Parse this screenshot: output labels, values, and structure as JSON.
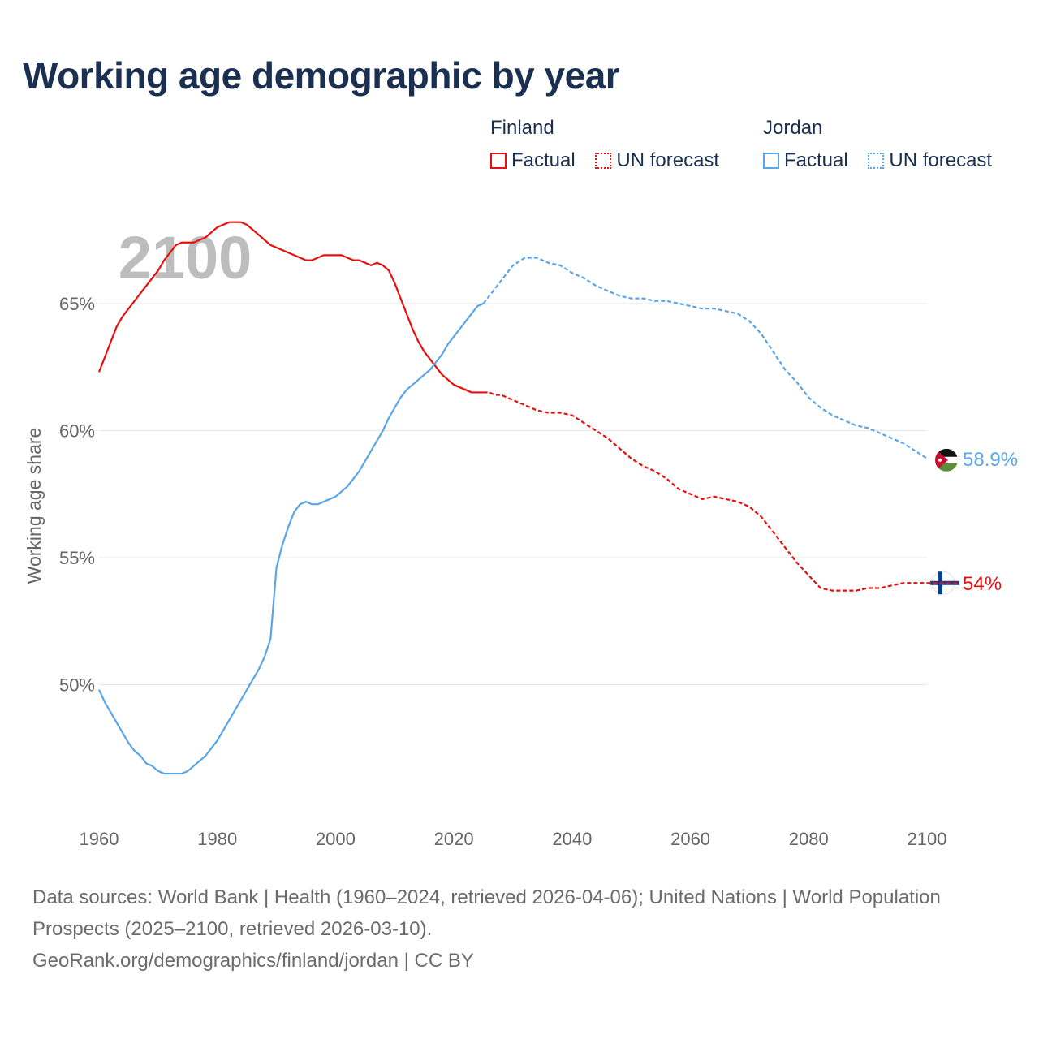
{
  "title": "Working age demographic by year",
  "legend": {
    "groups": [
      {
        "name": "Finland",
        "factual_label": "Factual",
        "forecast_label": "UN forecast",
        "color": "#e8100f"
      },
      {
        "name": "Jordan",
        "factual_label": "Factual",
        "forecast_label": "UN forecast",
        "color": "#5aa5e6"
      }
    ]
  },
  "footer": {
    "line1": "Data sources: World Bank | Health (1960–2024, retrieved 2026-04-06); United Nations | World Population Prospects (2025–2100, retrieved 2026-03-10).",
    "line2": "GeoRank.org/demographics/finland/jordan | CC BY"
  },
  "chart_data": {
    "type": "line",
    "year_watermark": "2100",
    "ylabel": "Working age share",
    "xlabel": "",
    "xlim": [
      1960,
      2100
    ],
    "ylim": [
      45,
      69.5
    ],
    "x_ticks": [
      1960,
      1980,
      2000,
      2020,
      2040,
      2060,
      2080,
      2100
    ],
    "y_ticks": [
      50,
      55,
      60,
      65
    ],
    "y_tick_labels": [
      "50%",
      "55%",
      "60%",
      "65%"
    ],
    "grid": true,
    "forecast_start": 2025,
    "series": [
      {
        "name": "Finland",
        "color": "#e8100f",
        "end_label": "54%",
        "flag_icon": "finland-flag-icon",
        "points": [
          [
            1960,
            62.3
          ],
          [
            1961,
            62.9
          ],
          [
            1962,
            63.5
          ],
          [
            1963,
            64.1
          ],
          [
            1964,
            64.5
          ],
          [
            1965,
            64.8
          ],
          [
            1966,
            65.1
          ],
          [
            1967,
            65.4
          ],
          [
            1968,
            65.7
          ],
          [
            1969,
            66.0
          ],
          [
            1970,
            66.3
          ],
          [
            1971,
            66.7
          ],
          [
            1972,
            67.0
          ],
          [
            1973,
            67.3
          ],
          [
            1974,
            67.4
          ],
          [
            1975,
            67.4
          ],
          [
            1976,
            67.4
          ],
          [
            1977,
            67.5
          ],
          [
            1978,
            67.6
          ],
          [
            1979,
            67.8
          ],
          [
            1980,
            68.0
          ],
          [
            1981,
            68.1
          ],
          [
            1982,
            68.2
          ],
          [
            1983,
            68.2
          ],
          [
            1984,
            68.2
          ],
          [
            1985,
            68.1
          ],
          [
            1986,
            67.9
          ],
          [
            1987,
            67.7
          ],
          [
            1988,
            67.5
          ],
          [
            1989,
            67.3
          ],
          [
            1990,
            67.2
          ],
          [
            1991,
            67.1
          ],
          [
            1992,
            67.0
          ],
          [
            1993,
            66.9
          ],
          [
            1994,
            66.8
          ],
          [
            1995,
            66.7
          ],
          [
            1996,
            66.7
          ],
          [
            1997,
            66.8
          ],
          [
            1998,
            66.9
          ],
          [
            1999,
            66.9
          ],
          [
            2000,
            66.9
          ],
          [
            2001,
            66.9
          ],
          [
            2002,
            66.8
          ],
          [
            2003,
            66.7
          ],
          [
            2004,
            66.7
          ],
          [
            2005,
            66.6
          ],
          [
            2006,
            66.5
          ],
          [
            2007,
            66.6
          ],
          [
            2008,
            66.5
          ],
          [
            2009,
            66.3
          ],
          [
            2010,
            65.8
          ],
          [
            2011,
            65.2
          ],
          [
            2012,
            64.6
          ],
          [
            2013,
            64.0
          ],
          [
            2014,
            63.5
          ],
          [
            2015,
            63.1
          ],
          [
            2016,
            62.8
          ],
          [
            2017,
            62.5
          ],
          [
            2018,
            62.2
          ],
          [
            2019,
            62.0
          ],
          [
            2020,
            61.8
          ],
          [
            2021,
            61.7
          ],
          [
            2022,
            61.6
          ],
          [
            2023,
            61.5
          ],
          [
            2024,
            61.5
          ],
          [
            2025,
            61.5
          ],
          [
            2026,
            61.5
          ],
          [
            2027,
            61.4
          ],
          [
            2028,
            61.4
          ],
          [
            2029,
            61.3
          ],
          [
            2030,
            61.2
          ],
          [
            2032,
            61.0
          ],
          [
            2034,
            60.8
          ],
          [
            2036,
            60.7
          ],
          [
            2038,
            60.7
          ],
          [
            2040,
            60.6
          ],
          [
            2042,
            60.3
          ],
          [
            2044,
            60.0
          ],
          [
            2046,
            59.7
          ],
          [
            2048,
            59.3
          ],
          [
            2050,
            58.9
          ],
          [
            2052,
            58.6
          ],
          [
            2054,
            58.4
          ],
          [
            2056,
            58.1
          ],
          [
            2058,
            57.7
          ],
          [
            2060,
            57.5
          ],
          [
            2062,
            57.3
          ],
          [
            2064,
            57.4
          ],
          [
            2066,
            57.3
          ],
          [
            2068,
            57.2
          ],
          [
            2070,
            57.0
          ],
          [
            2072,
            56.6
          ],
          [
            2074,
            56.0
          ],
          [
            2076,
            55.4
          ],
          [
            2078,
            54.8
          ],
          [
            2080,
            54.3
          ],
          [
            2082,
            53.8
          ],
          [
            2084,
            53.7
          ],
          [
            2086,
            53.7
          ],
          [
            2088,
            53.7
          ],
          [
            2090,
            53.8
          ],
          [
            2092,
            53.8
          ],
          [
            2094,
            53.9
          ],
          [
            2096,
            54.0
          ],
          [
            2098,
            54.0
          ],
          [
            2100,
            54.0
          ]
        ]
      },
      {
        "name": "Jordan",
        "color": "#5aa5e6",
        "end_label": "58.9%",
        "flag_icon": "jordan-flag-icon",
        "points": [
          [
            1960,
            49.8
          ],
          [
            1961,
            49.3
          ],
          [
            1962,
            48.9
          ],
          [
            1963,
            48.5
          ],
          [
            1964,
            48.1
          ],
          [
            1965,
            47.7
          ],
          [
            1966,
            47.4
          ],
          [
            1967,
            47.2
          ],
          [
            1968,
            46.9
          ],
          [
            1969,
            46.8
          ],
          [
            1970,
            46.6
          ],
          [
            1971,
            46.5
          ],
          [
            1972,
            46.5
          ],
          [
            1973,
            46.5
          ],
          [
            1974,
            46.5
          ],
          [
            1975,
            46.6
          ],
          [
            1976,
            46.8
          ],
          [
            1977,
            47.0
          ],
          [
            1978,
            47.2
          ],
          [
            1979,
            47.5
          ],
          [
            1980,
            47.8
          ],
          [
            1981,
            48.2
          ],
          [
            1982,
            48.6
          ],
          [
            1983,
            49.0
          ],
          [
            1984,
            49.4
          ],
          [
            1985,
            49.8
          ],
          [
            1986,
            50.2
          ],
          [
            1987,
            50.6
          ],
          [
            1988,
            51.1
          ],
          [
            1989,
            51.8
          ],
          [
            1990,
            54.6
          ],
          [
            1991,
            55.5
          ],
          [
            1992,
            56.2
          ],
          [
            1993,
            56.8
          ],
          [
            1994,
            57.1
          ],
          [
            1995,
            57.2
          ],
          [
            1996,
            57.1
          ],
          [
            1997,
            57.1
          ],
          [
            1998,
            57.2
          ],
          [
            1999,
            57.3
          ],
          [
            2000,
            57.4
          ],
          [
            2001,
            57.6
          ],
          [
            2002,
            57.8
          ],
          [
            2003,
            58.1
          ],
          [
            2004,
            58.4
          ],
          [
            2005,
            58.8
          ],
          [
            2006,
            59.2
          ],
          [
            2007,
            59.6
          ],
          [
            2008,
            60.0
          ],
          [
            2009,
            60.5
          ],
          [
            2010,
            60.9
          ],
          [
            2011,
            61.3
          ],
          [
            2012,
            61.6
          ],
          [
            2013,
            61.8
          ],
          [
            2014,
            62.0
          ],
          [
            2015,
            62.2
          ],
          [
            2016,
            62.4
          ],
          [
            2017,
            62.7
          ],
          [
            2018,
            63.0
          ],
          [
            2019,
            63.4
          ],
          [
            2020,
            63.7
          ],
          [
            2021,
            64.0
          ],
          [
            2022,
            64.3
          ],
          [
            2023,
            64.6
          ],
          [
            2024,
            64.9
          ],
          [
            2025,
            65.0
          ],
          [
            2026,
            65.3
          ],
          [
            2027,
            65.6
          ],
          [
            2028,
            65.9
          ],
          [
            2029,
            66.2
          ],
          [
            2030,
            66.5
          ],
          [
            2032,
            66.8
          ],
          [
            2034,
            66.8
          ],
          [
            2036,
            66.6
          ],
          [
            2038,
            66.5
          ],
          [
            2040,
            66.2
          ],
          [
            2042,
            66.0
          ],
          [
            2044,
            65.7
          ],
          [
            2046,
            65.5
          ],
          [
            2048,
            65.3
          ],
          [
            2050,
            65.2
          ],
          [
            2052,
            65.2
          ],
          [
            2054,
            65.1
          ],
          [
            2056,
            65.1
          ],
          [
            2058,
            65.0
          ],
          [
            2060,
            64.9
          ],
          [
            2062,
            64.8
          ],
          [
            2064,
            64.8
          ],
          [
            2066,
            64.7
          ],
          [
            2068,
            64.6
          ],
          [
            2070,
            64.3
          ],
          [
            2072,
            63.8
          ],
          [
            2074,
            63.1
          ],
          [
            2076,
            62.4
          ],
          [
            2078,
            61.9
          ],
          [
            2080,
            61.3
          ],
          [
            2082,
            60.9
          ],
          [
            2084,
            60.6
          ],
          [
            2086,
            60.4
          ],
          [
            2088,
            60.2
          ],
          [
            2090,
            60.1
          ],
          [
            2092,
            59.9
          ],
          [
            2094,
            59.7
          ],
          [
            2096,
            59.5
          ],
          [
            2098,
            59.2
          ],
          [
            2100,
            58.9
          ]
        ]
      }
    ]
  }
}
